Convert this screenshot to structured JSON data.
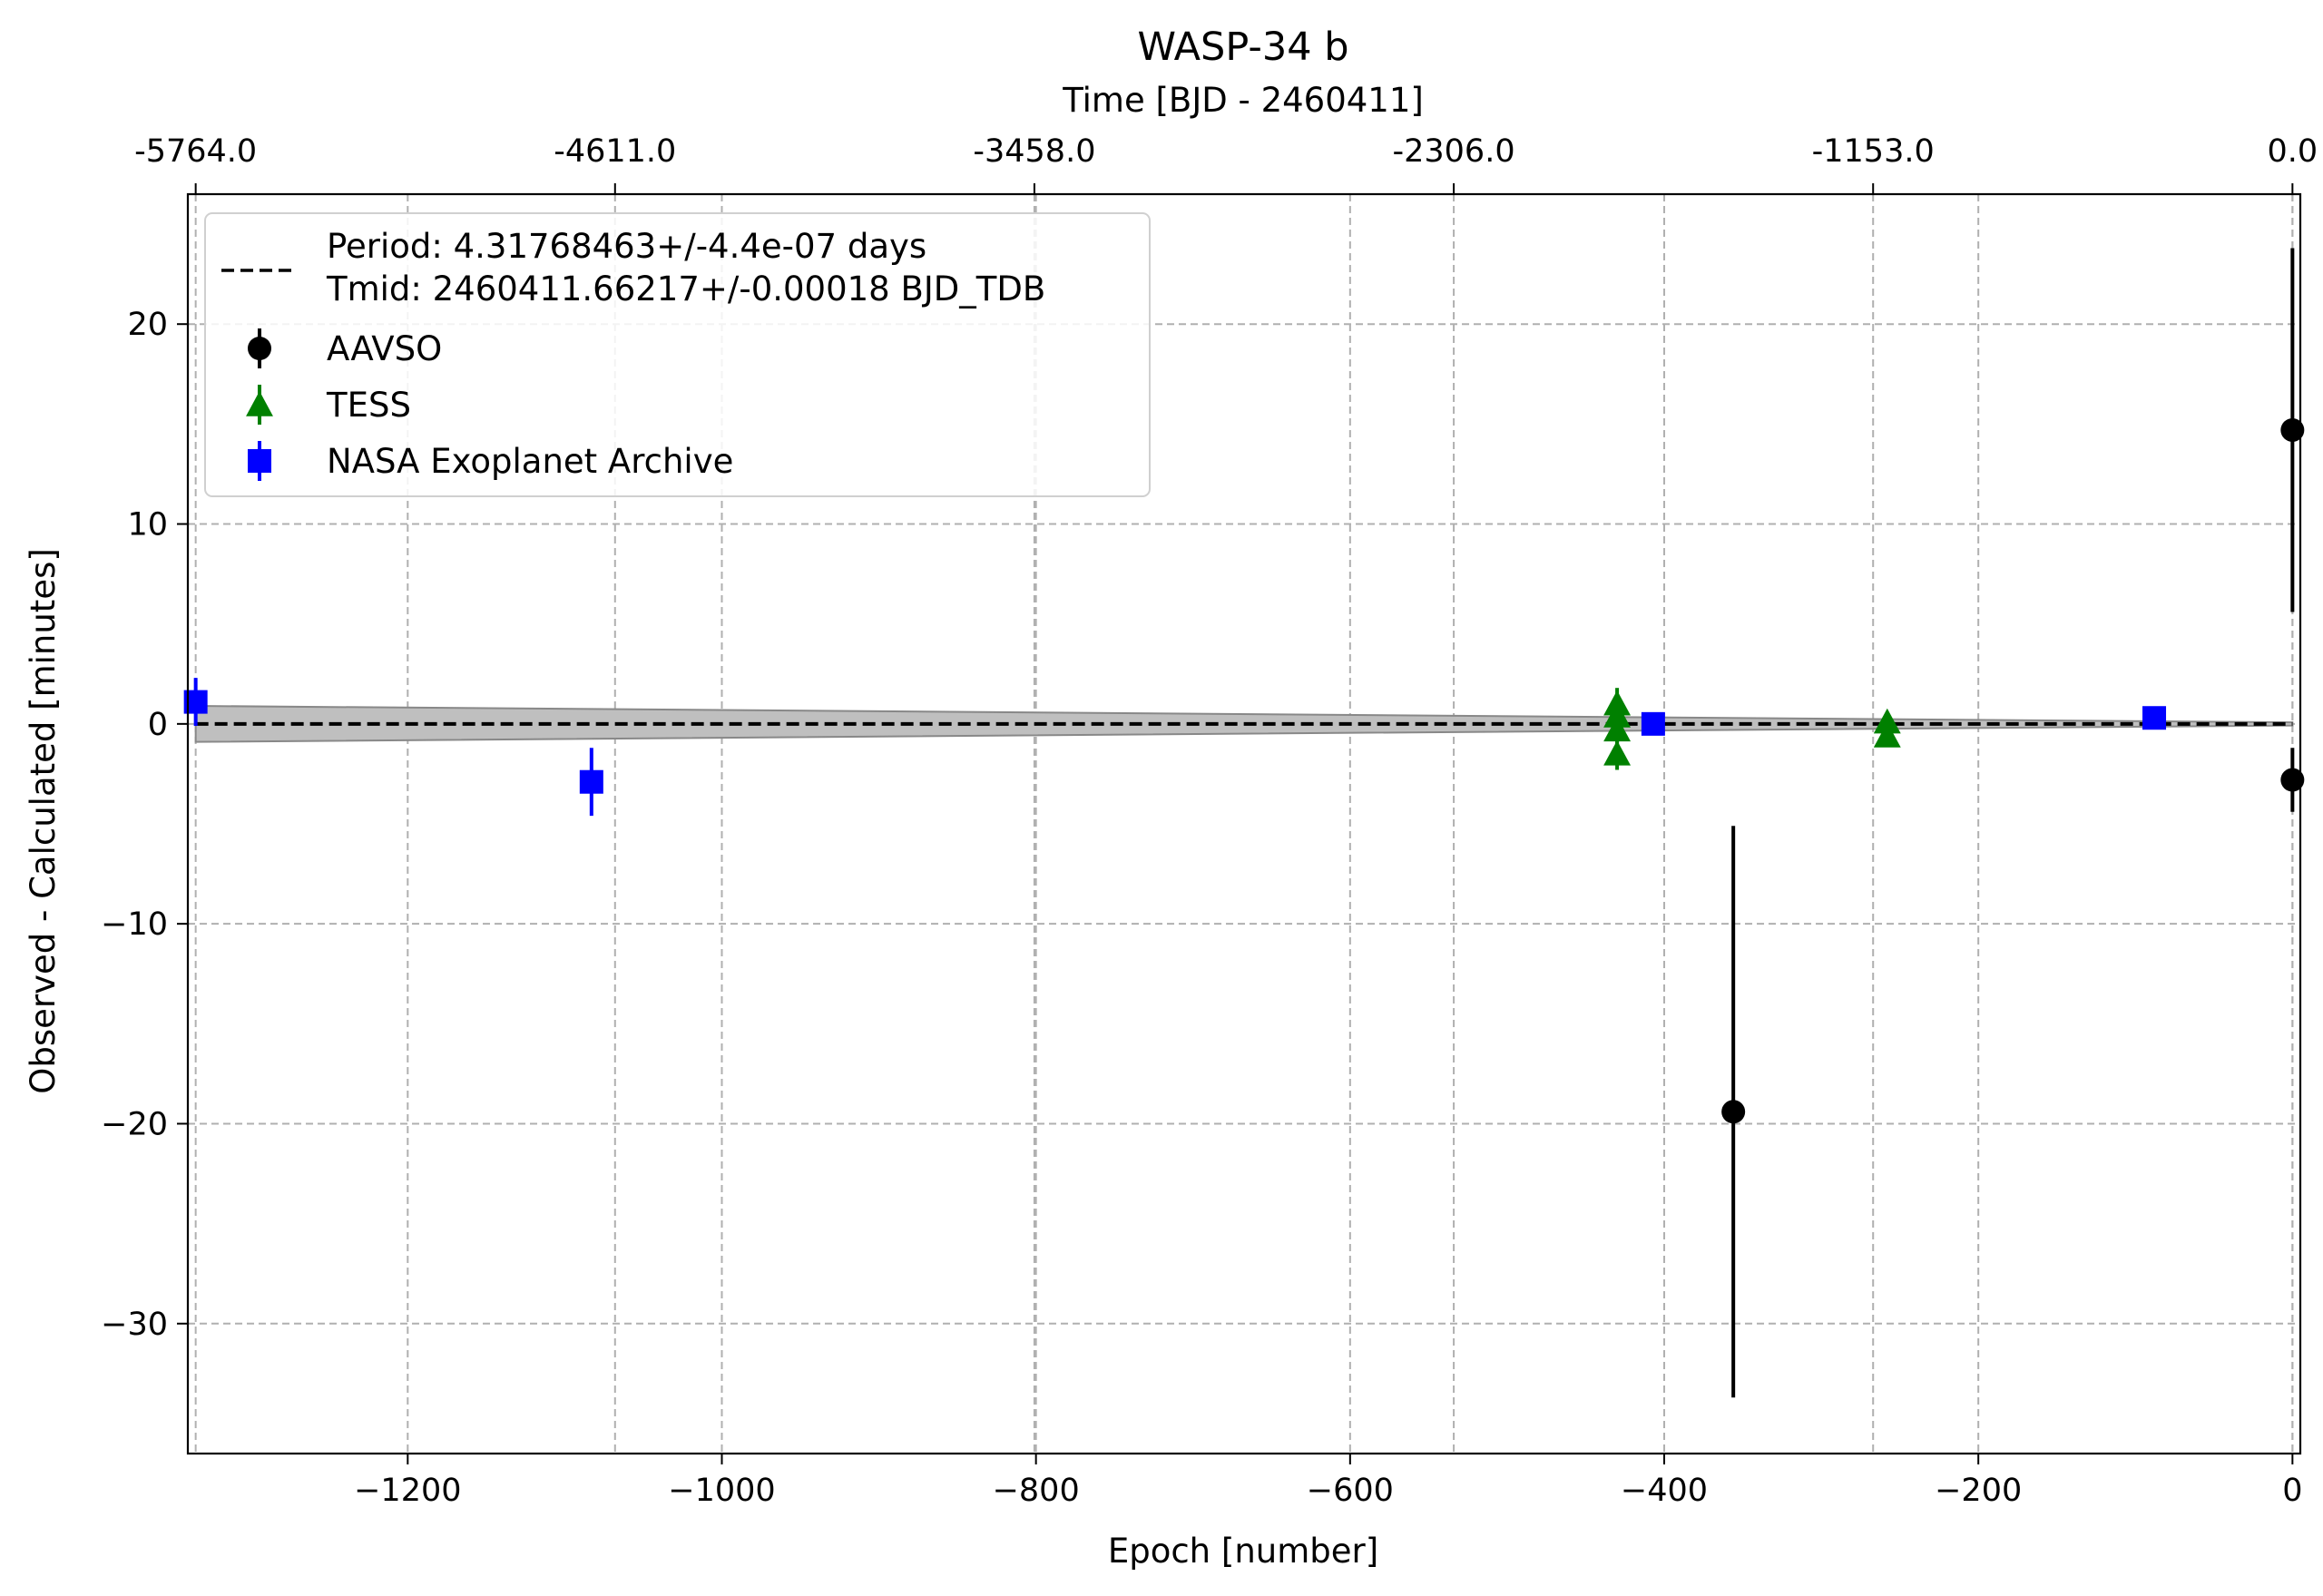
{
  "chart_data": {
    "type": "scatter",
    "title": "WASP-34 b",
    "xlabel": "Epoch [number]",
    "ylabel": "Observed - Calculated [minutes]",
    "top_xlabel": "Time [BJD - 2460411]",
    "xlim": [
      -1340,
      5
    ],
    "ylim": [
      -36.5,
      26.5
    ],
    "grid": true,
    "legend_placement": "upper-left",
    "x_ticks": [
      {
        "value": -1200,
        "label": "−1200"
      },
      {
        "value": -1000,
        "label": "−1000"
      },
      {
        "value": -800,
        "label": "−800"
      },
      {
        "value": -600,
        "label": "−600"
      },
      {
        "value": -400,
        "label": "−400"
      },
      {
        "value": -200,
        "label": "−200"
      },
      {
        "value": 0,
        "label": "0"
      }
    ],
    "y_ticks": [
      {
        "value": 20,
        "label": "20"
      },
      {
        "value": 10,
        "label": "10"
      },
      {
        "value": 0,
        "label": "0"
      },
      {
        "value": -10,
        "label": "−10"
      },
      {
        "value": -20,
        "label": "−20"
      },
      {
        "value": -30,
        "label": "−30"
      }
    ],
    "top_ticks": [
      {
        "epoch": -1335,
        "label": "-5764.0"
      },
      {
        "epoch": -1068,
        "label": "-4611.0"
      },
      {
        "epoch": -801,
        "label": "-3458.0"
      },
      {
        "epoch": -534,
        "label": "-2306.0"
      },
      {
        "epoch": -267,
        "label": "-1153.0"
      },
      {
        "epoch": 0,
        "label": "0.0"
      }
    ],
    "fit": {
      "label": "Period: 4.31768463+/-4.4e-07 days\nTmid: 2460411.66217+/-0.00018 BJD_TDB",
      "label_lines": [
        "Period: 4.31768463+/-4.4e-07 days",
        "Tmid: 2460411.66217+/-0.00018 BJD_TDB"
      ],
      "x": [
        -1335,
        0
      ],
      "y": [
        0,
        0
      ],
      "band_upper": [
        0.9,
        0.08
      ],
      "band_lower": [
        -0.9,
        -0.08
      ],
      "line_color": "#000000",
      "band_color": "#bfbfbf"
    },
    "series": [
      {
        "name": "AAVSO",
        "marker": "circle",
        "color": "#000000",
        "points": [
          {
            "x": -356,
            "y": -19.4,
            "err": 14.3
          },
          {
            "x": 0,
            "y": 14.7,
            "err": 9.1
          },
          {
            "x": 0,
            "y": -2.8,
            "err": 1.6
          }
        ]
      },
      {
        "name": "TESS",
        "marker": "triangle",
        "color": "#008000",
        "points": [
          {
            "x": -430,
            "y": 1.0,
            "err": 0.8
          },
          {
            "x": -430,
            "y": 0.4,
            "err": 0.8
          },
          {
            "x": -430,
            "y": -0.3,
            "err": 0.8
          },
          {
            "x": -430,
            "y": -1.5,
            "err": 0.8
          },
          {
            "x": -258,
            "y": 0.1,
            "err": 0.5
          },
          {
            "x": -258,
            "y": -0.6,
            "err": 0.5
          }
        ]
      },
      {
        "name": "NASA Exoplanet Archive",
        "marker": "square",
        "color": "#0000ff",
        "points": [
          {
            "x": -1335,
            "y": 1.1,
            "err": 1.2
          },
          {
            "x": -1083,
            "y": -2.9,
            "err": 1.7
          },
          {
            "x": -407,
            "y": 0.0,
            "err": 0.35
          },
          {
            "x": -88,
            "y": 0.3,
            "err": 0.3
          }
        ]
      }
    ]
  }
}
